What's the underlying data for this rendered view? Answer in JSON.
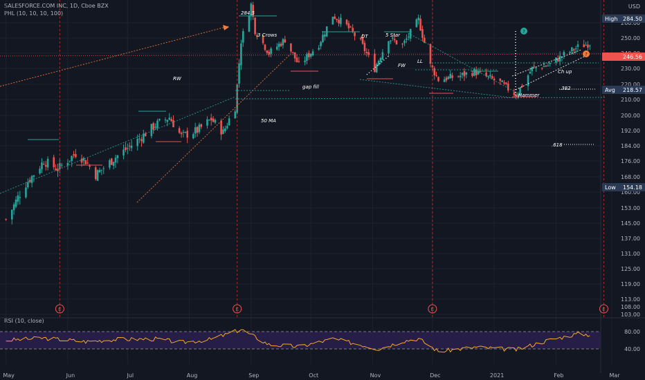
{
  "header": {
    "title": "SALESFORCE.COM INC, 1D, Cboe BZX",
    "indicator": "PHL (10, 10, 10, 100)"
  },
  "rsi": {
    "label": "RSI (10, close)",
    "levels": [
      80.0,
      40.0
    ]
  },
  "price_tags": {
    "high": {
      "label": "High",
      "value": "284.50"
    },
    "current": {
      "value": "246.56"
    },
    "avg": {
      "label": "Avg",
      "value": "218.57"
    },
    "low": {
      "label": "Low",
      "value": "154.18"
    },
    "currency": "USD"
  },
  "annotations": [
    {
      "text": "284.5",
      "color": "#ffffff"
    },
    {
      "text": "3 Crows",
      "color": "#ffffff"
    },
    {
      "text": "DT",
      "color": "#ffffff"
    },
    {
      "text": "5 Star",
      "color": "#ffffff"
    },
    {
      "text": "RW",
      "color": "#f57c3a"
    },
    {
      "text": "FW",
      "color": "#26a69a"
    },
    {
      "text": "LL",
      "color": "#ffffff"
    },
    {
      "text": "gap fill",
      "color": "#ffffff"
    },
    {
      "text": "Ch up",
      "color": "#ffffff"
    },
    {
      "text": ".382",
      "color": "#ffffff"
    },
    {
      "text": "Hammer",
      "color": "#ffffff"
    },
    {
      "text": "50 MA",
      "color": "#ffffff"
    },
    {
      "text": ".618",
      "color": "#ffffff"
    }
  ],
  "earnings_marker": "E",
  "colors": {
    "up": "#26a69a",
    "down": "#ef5350",
    "rsi": "#f9a825",
    "rsi_band": "#2a1f4d"
  },
  "chart_data": {
    "type": "candlestick",
    "yaxis_ticks": [
      284.5,
      260.0,
      250.0,
      240.0,
      230.0,
      220.0,
      210.0,
      200.0,
      192.0,
      184.0,
      176.0,
      168.0,
      160.0,
      153.0,
      145.0,
      137.0,
      131.0,
      125.0,
      119.0,
      113.0,
      108.0,
      103.0,
      98.5
    ],
    "rsi_ticks": [
      80.0,
      40.0
    ],
    "xaxis_labels": [
      "May",
      "Jun",
      "Jul",
      "Aug",
      "Sep",
      "Oct",
      "Nov",
      "Dec",
      "2021",
      "Feb",
      "Mar"
    ],
    "earnings_months": [
      "Jun",
      "Sep",
      "Dec",
      "Mar"
    ],
    "fib_levels": [
      {
        "label": ".382",
        "price": 218.57
      },
      {
        "label": ".618",
        "price": 178.5
      }
    ],
    "high": 284.5,
    "low": 154.18,
    "avg": 218.57,
    "last": 246.56,
    "anchors": [
      [
        "2020-05-01",
        147
      ],
      [
        "2020-05-10",
        163
      ],
      [
        "2020-05-20",
        176
      ],
      [
        "2020-05-27",
        172
      ],
      [
        "2020-06-05",
        180
      ],
      [
        "2020-06-10",
        176
      ],
      [
        "2020-06-15",
        169
      ],
      [
        "2020-06-25",
        178
      ],
      [
        "2020-07-05",
        186
      ],
      [
        "2020-07-15",
        195
      ],
      [
        "2020-07-22",
        199
      ],
      [
        "2020-07-28",
        189
      ],
      [
        "2020-08-05",
        192
      ],
      [
        "2020-08-12",
        198
      ],
      [
        "2020-08-18",
        191
      ],
      [
        "2020-08-24",
        205
      ],
      [
        "2020-08-27",
        248
      ],
      [
        "2020-09-01",
        272
      ],
      [
        "2020-09-03",
        255
      ],
      [
        "2020-09-10",
        240
      ],
      [
        "2020-09-18",
        249
      ],
      [
        "2020-09-25",
        232
      ],
      [
        "2020-10-05",
        246
      ],
      [
        "2020-10-12",
        265
      ],
      [
        "2020-10-19",
        258
      ],
      [
        "2020-10-26",
        247
      ],
      [
        "2020-11-02",
        230
      ],
      [
        "2020-11-09",
        250
      ],
      [
        "2020-11-16",
        245
      ],
      [
        "2020-11-24",
        262
      ],
      [
        "2020-11-30",
        232
      ],
      [
        "2020-12-04",
        223
      ],
      [
        "2020-12-14",
        225
      ],
      [
        "2020-12-22",
        228
      ],
      [
        "2021-01-04",
        221
      ],
      [
        "2021-01-12",
        213
      ],
      [
        "2021-01-20",
        230
      ],
      [
        "2021-01-28",
        232
      ],
      [
        "2021-02-05",
        239
      ],
      [
        "2021-02-12",
        244
      ],
      [
        "2021-02-18",
        246.56
      ]
    ],
    "rsi_anchors": [
      [
        "2020-05-01",
        60
      ],
      [
        "2020-05-20",
        65
      ],
      [
        "2020-06-10",
        57
      ],
      [
        "2020-06-25",
        62
      ],
      [
        "2020-07-15",
        63
      ],
      [
        "2020-07-28",
        55
      ],
      [
        "2020-08-12",
        62
      ],
      [
        "2020-08-27",
        85
      ],
      [
        "2020-09-10",
        50
      ],
      [
        "2020-09-25",
        45
      ],
      [
        "2020-10-12",
        63
      ],
      [
        "2020-10-26",
        50
      ],
      [
        "2020-11-04",
        40
      ],
      [
        "2020-11-16",
        58
      ],
      [
        "2020-11-24",
        64
      ],
      [
        "2020-12-04",
        34
      ],
      [
        "2020-12-22",
        44
      ],
      [
        "2021-01-12",
        38
      ],
      [
        "2021-01-28",
        60
      ],
      [
        "2021-02-12",
        75
      ],
      [
        "2021-02-18",
        73
      ]
    ]
  }
}
